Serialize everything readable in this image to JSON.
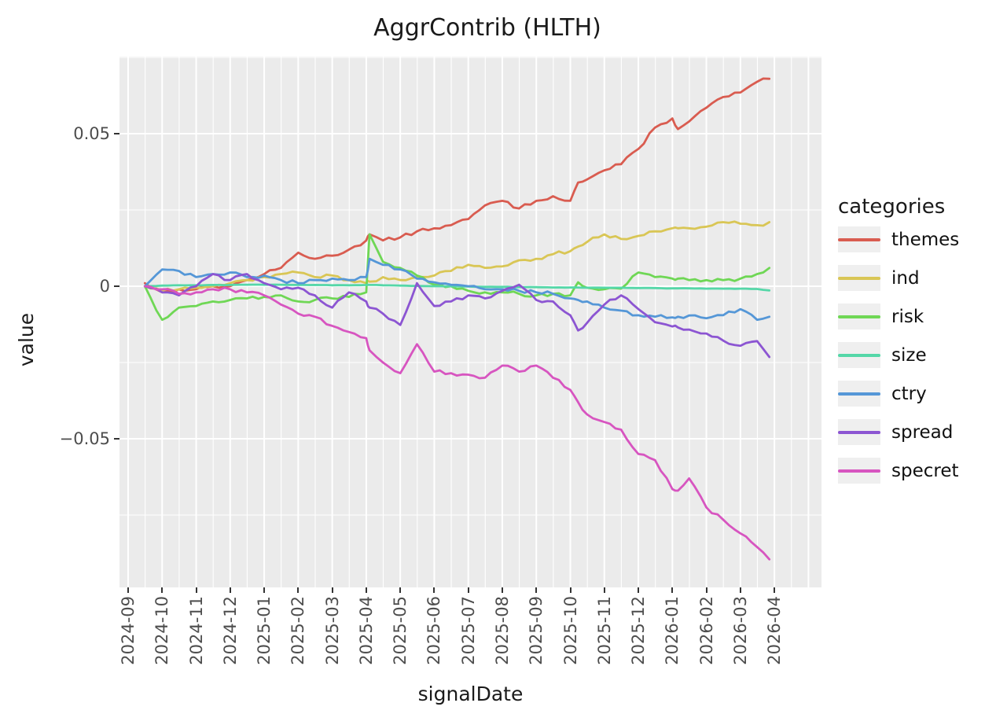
{
  "title": "AggrContrib (HLTH)",
  "chart_data": {
    "type": "line",
    "title": "AggrContrib (HLTH)",
    "xlabel": "signalDate",
    "ylabel": "value",
    "legend_title": "categories",
    "legend_position": "right",
    "panel_bg": "#ebebeb",
    "grid_color": "#ffffff",
    "tick_label_color": "#4d4d4d",
    "ylim": [
      -0.0987,
      0.0753
    ],
    "y_ticks": [
      0.05,
      0,
      -0.05
    ],
    "y_tick_labels": [
      "0.05",
      "0",
      "−0.05"
    ],
    "y_minor_ticks": [
      0.075,
      0.025,
      -0.025,
      -0.075
    ],
    "x_tick_labels": [
      "2024-09",
      "2024-10",
      "2024-11",
      "2024-12",
      "2025-01",
      "2025-02",
      "2025-03",
      "2025-04",
      "2025-05",
      "2025-06",
      "2025-07",
      "2025-08",
      "2025-09",
      "2025-10",
      "2025-11",
      "2025-12",
      "2026-01",
      "2026-02",
      "2026-03",
      "2026-04"
    ],
    "x": [
      "2024-09-16",
      "2024-10-01",
      "2024-10-16",
      "2024-11-01",
      "2024-11-16",
      "2024-12-01",
      "2024-12-16",
      "2025-01-01",
      "2025-01-16",
      "2025-02-01",
      "2025-02-16",
      "2025-03-01",
      "2025-03-16",
      "2025-04-01",
      "2025-04-04",
      "2025-04-16",
      "2025-05-01",
      "2025-05-16",
      "2025-06-01",
      "2025-06-16",
      "2025-07-01",
      "2025-07-16",
      "2025-08-01",
      "2025-08-16",
      "2025-09-01",
      "2025-09-16",
      "2025-10-01",
      "2025-10-08",
      "2025-10-16",
      "2025-11-01",
      "2025-11-16",
      "2025-12-01",
      "2025-12-16",
      "2026-01-01",
      "2026-01-06",
      "2026-01-16",
      "2026-02-01",
      "2026-02-16",
      "2026-03-01",
      "2026-03-16",
      "2026-03-27"
    ],
    "series": [
      {
        "name": "themes",
        "color": "#d95c50",
        "values": [
          0.001,
          -0.002,
          -0.001,
          -0.001,
          0.0,
          0.0,
          0.002,
          0.004,
          0.006,
          0.011,
          0.009,
          0.01,
          0.012,
          0.015,
          0.017,
          0.015,
          0.016,
          0.018,
          0.019,
          0.02,
          0.022,
          0.0265,
          0.028,
          0.0255,
          0.028,
          0.0295,
          0.028,
          0.034,
          0.035,
          0.038,
          0.04,
          0.045,
          0.052,
          0.055,
          0.0515,
          0.054,
          0.0585,
          0.062,
          0.0635,
          0.067,
          0.068
        ]
      },
      {
        "name": "ind",
        "color": "#d9c655",
        "values": [
          0.0,
          -0.0015,
          -0.001,
          -0.0005,
          0.0,
          0.001,
          0.002,
          0.003,
          0.004,
          0.0045,
          0.003,
          0.0035,
          0.002,
          0.001,
          0.0015,
          0.003,
          0.002,
          0.003,
          0.0035,
          0.005,
          0.007,
          0.006,
          0.0065,
          0.0085,
          0.009,
          0.0105,
          0.0115,
          0.013,
          0.0145,
          0.017,
          0.0155,
          0.0165,
          0.018,
          0.019,
          0.019,
          0.019,
          0.0195,
          0.021,
          0.0205,
          0.02,
          0.021
        ]
      },
      {
        "name": "risk",
        "color": "#6fd755",
        "values": [
          0.0,
          -0.011,
          -0.007,
          -0.0065,
          -0.005,
          -0.0045,
          -0.004,
          -0.0035,
          -0.003,
          -0.005,
          -0.0045,
          -0.004,
          -0.0035,
          -0.002,
          0.017,
          0.008,
          0.006,
          0.0035,
          0.0005,
          0.0,
          -0.0015,
          -0.002,
          -0.002,
          -0.0025,
          -0.003,
          -0.0025,
          -0.003,
          0.0013,
          -0.0005,
          -0.001,
          -0.0008,
          0.0045,
          0.003,
          0.0025,
          0.0025,
          0.002,
          0.002,
          0.002,
          0.0025,
          0.004,
          0.006
        ]
      },
      {
        "name": "size",
        "color": "#55d7a8",
        "values": [
          0.0,
          0.0002,
          0.0003,
          0.0003,
          0.0004,
          0.0004,
          0.0005,
          0.0005,
          0.0005,
          0.0004,
          0.0004,
          0.0003,
          0.0003,
          0.0004,
          0.0004,
          0.0003,
          0.0002,
          0.0001,
          0.0,
          0.0,
          -0.0001,
          -0.0002,
          -0.0002,
          -0.0003,
          -0.0003,
          -0.0004,
          -0.0004,
          -0.0004,
          -0.0005,
          -0.0005,
          -0.0005,
          -0.0006,
          -0.0006,
          -0.0007,
          -0.0007,
          -0.0007,
          -0.0008,
          -0.0008,
          -0.0008,
          -0.0009,
          -0.0014
        ]
      },
      {
        "name": "ctry",
        "color": "#5597d7",
        "values": [
          0.0,
          0.0055,
          0.005,
          0.003,
          0.004,
          0.0045,
          0.003,
          0.0035,
          0.002,
          0.001,
          0.002,
          0.0025,
          0.002,
          0.003,
          0.009,
          0.007,
          0.0055,
          0.0025,
          0.0013,
          0.0005,
          0.0,
          -0.001,
          -0.001,
          -0.0015,
          -0.002,
          -0.0025,
          -0.004,
          -0.0045,
          -0.005,
          -0.007,
          -0.008,
          -0.0095,
          -0.01,
          -0.0102,
          -0.01,
          -0.0096,
          -0.0105,
          -0.0095,
          -0.0075,
          -0.011,
          -0.01
        ]
      },
      {
        "name": "spread",
        "color": "#8c55d2",
        "values": [
          0.0,
          -0.002,
          -0.003,
          0.0,
          0.004,
          0.002,
          0.004,
          0.001,
          -0.001,
          -0.0005,
          -0.003,
          -0.007,
          -0.002,
          -0.005,
          -0.007,
          -0.009,
          -0.0127,
          0.001,
          -0.0065,
          -0.005,
          -0.003,
          -0.004,
          -0.0015,
          0.0005,
          -0.0045,
          -0.005,
          -0.0095,
          -0.0145,
          -0.012,
          -0.006,
          -0.003,
          -0.0075,
          -0.0118,
          -0.0132,
          -0.0135,
          -0.0142,
          -0.0155,
          -0.0178,
          -0.0195,
          -0.018,
          -0.0232
        ]
      },
      {
        "name": "specret",
        "color": "#d755c0",
        "values": [
          0.0,
          -0.001,
          -0.0025,
          -0.002,
          -0.001,
          -0.001,
          -0.002,
          -0.003,
          -0.006,
          -0.009,
          -0.01,
          -0.013,
          -0.015,
          -0.017,
          -0.021,
          -0.025,
          -0.0285,
          -0.019,
          -0.028,
          -0.0285,
          -0.029,
          -0.03,
          -0.026,
          -0.028,
          -0.026,
          -0.03,
          -0.034,
          -0.038,
          -0.042,
          -0.0445,
          -0.047,
          -0.055,
          -0.057,
          -0.0665,
          -0.067,
          -0.063,
          -0.0725,
          -0.0765,
          -0.081,
          -0.0855,
          -0.0895
        ]
      }
    ]
  }
}
